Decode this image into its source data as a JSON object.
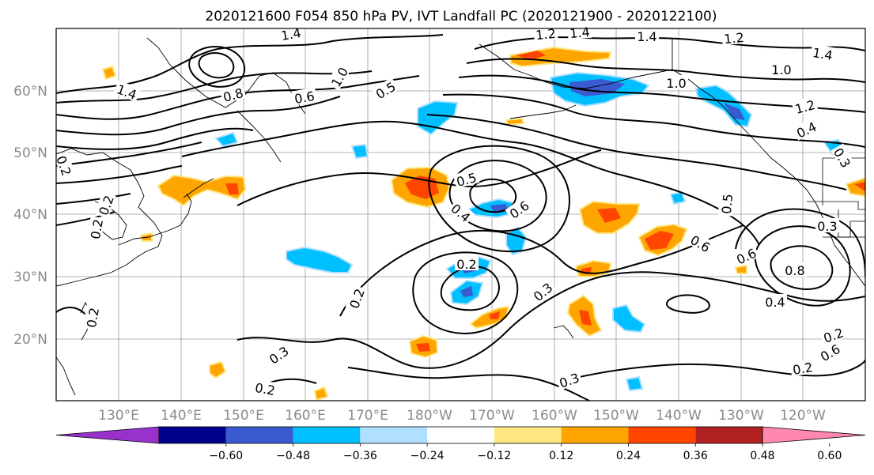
{
  "title": "2020121600 F054 850 hPa PV, IVT Landfall PC (2020121900 - 2020122100)",
  "lat_labels": [
    "60°N",
    "50°N",
    "40°N",
    "30°N",
    "20°N"
  ],
  "lon_labels": [
    "130°E",
    "140°E",
    "150°E",
    "160°E",
    "170°E",
    "180°W",
    "170°W",
    "160°W",
    "150°W",
    "140°W",
    "130°W",
    "120°W"
  ],
  "colorbar": {
    "tick_labels": [
      "-0.60",
      "-0.48",
      "-0.36",
      "-0.24",
      "-0.12",
      "0.12",
      "0.24",
      "0.36",
      "0.48",
      "0.60"
    ],
    "colors": [
      "#9932cc",
      "#00008b",
      "#3a5bd0",
      "#00bfff",
      "#b0e0ff",
      "#ffffff",
      "#ffe680",
      "#ffa500",
      "#ff4500",
      "#b22222",
      "#ff88b0"
    ]
  },
  "contour_labels": [
    {
      "text": "1.4"
    },
    {
      "text": "1.2"
    },
    {
      "text": "1.4"
    },
    {
      "text": "1.4"
    },
    {
      "text": "1.2"
    },
    {
      "text": "1.4"
    },
    {
      "text": "1.0"
    },
    {
      "text": "1.0"
    },
    {
      "text": "1.4"
    },
    {
      "text": "0.8"
    },
    {
      "text": "0.6"
    },
    {
      "text": "0.5"
    },
    {
      "text": "1.0"
    },
    {
      "text": "1.2"
    },
    {
      "text": "0.4"
    },
    {
      "text": "0.2"
    },
    {
      "text": "0.3"
    },
    {
      "text": "0.5"
    },
    {
      "text": "0.6"
    },
    {
      "text": "0.4"
    },
    {
      "text": "0.5"
    },
    {
      "text": "0.3"
    },
    {
      "text": "0.6"
    },
    {
      "text": "0.6"
    },
    {
      "text": "0.8"
    },
    {
      "text": "0.2"
    },
    {
      "text": "0.2"
    },
    {
      "text": "0.3"
    },
    {
      "text": "0.4"
    },
    {
      "text": "0.2"
    },
    {
      "text": "0.2"
    },
    {
      "text": "0.3"
    },
    {
      "text": "0.6"
    },
    {
      "text": "0.2"
    },
    {
      "text": "0.3"
    },
    {
      "text": "0.2"
    },
    {
      "text": "0.2"
    },
    {
      "text": "0.2"
    }
  ]
}
